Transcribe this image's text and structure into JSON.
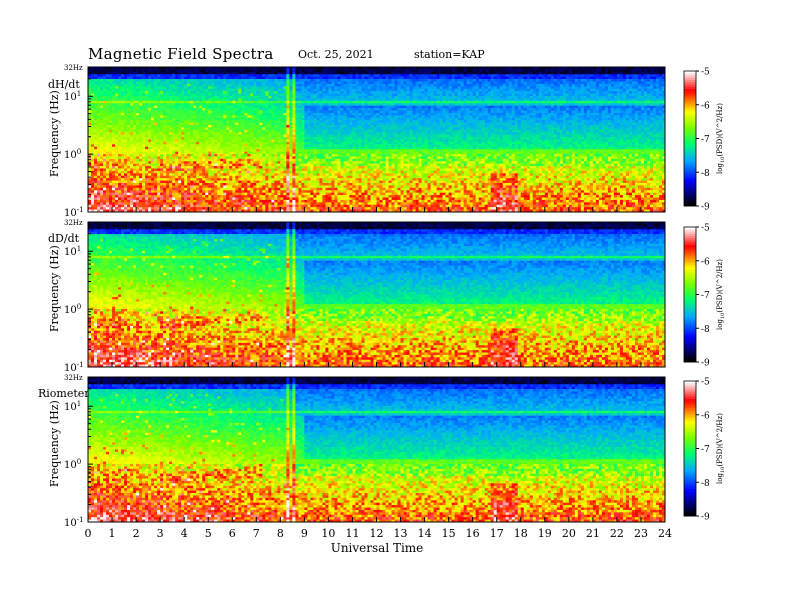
{
  "header": {
    "title": "Magnetic Field Spectra",
    "date": "Oct. 25, 2021",
    "station": "station=KAP"
  },
  "chart_data": {
    "type": "heatmap",
    "xlabel": "Universal Time",
    "x_ticks": [
      "0",
      "1",
      "2",
      "3",
      "4",
      "5",
      "6",
      "7",
      "8",
      "9",
      "10",
      "11",
      "12",
      "13",
      "14",
      "15",
      "16",
      "17",
      "18",
      "19",
      "20",
      "21",
      "22",
      "23",
      "24"
    ],
    "xlim": [
      0,
      24
    ],
    "ylabel": "Frequency (Hz)",
    "y_top_label": "32Hz",
    "y_ticks": [
      {
        "value": 10,
        "base": "10",
        "exp": "1"
      },
      {
        "value": 1,
        "base": "10",
        "exp": "0"
      },
      {
        "value": 0.1,
        "base": "10",
        "exp": "-1"
      }
    ],
    "y_scale": "log",
    "ylim": [
      0.1,
      32
    ],
    "colorbar": {
      "label": "log10(PSD)(V^2/Hz)",
      "label_parts": {
        "base": "log",
        "sub": "10",
        "rest": "(PSD)(V^2/Hz)"
      },
      "ticks": [
        "-5",
        "-6",
        "-7",
        "-8",
        "-9"
      ],
      "range": [
        -9,
        -5
      ],
      "colors": [
        "#000000",
        "#0000ff",
        "#00a8ff",
        "#00ff70",
        "#7aff00",
        "#ffff00",
        "#ff0000",
        "#ffffff"
      ]
    },
    "panels": [
      {
        "label": "dH/dt"
      },
      {
        "label": "dD/dt"
      },
      {
        "label": "Riometer"
      }
    ],
    "features": {
      "resonance_band_hz": 8,
      "high_activity_hours": [
        0,
        8.6
      ],
      "broadband_spike_hours": [
        8.3,
        8.6
      ],
      "low_freq_enhancement_hour": 17.3
    }
  }
}
